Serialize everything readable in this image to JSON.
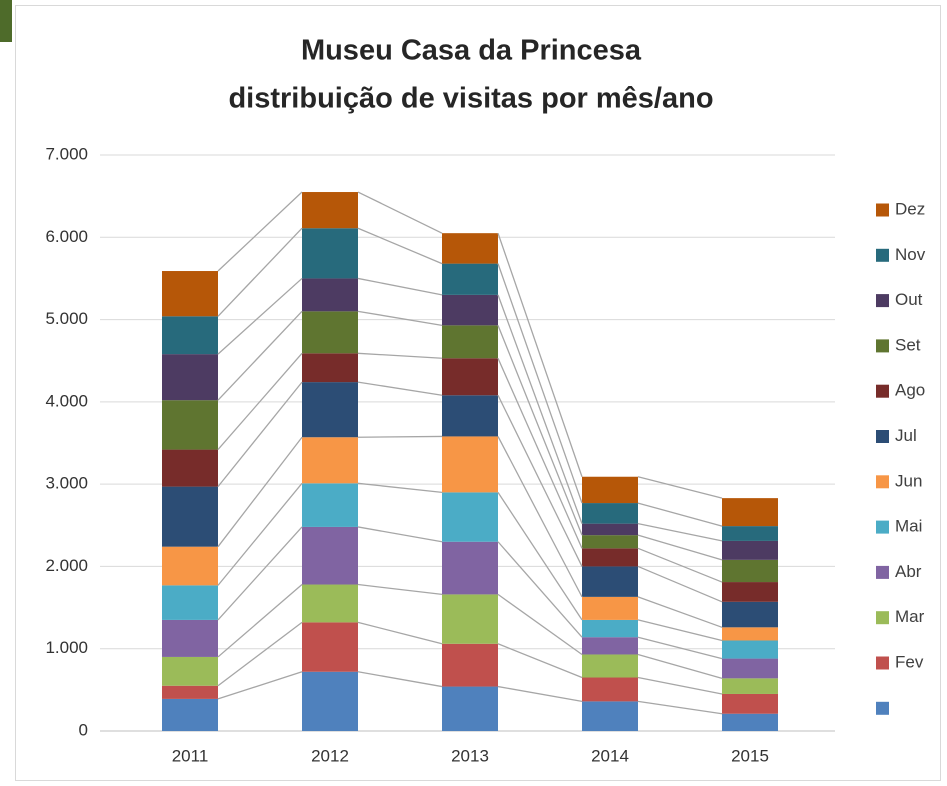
{
  "chart_data": {
    "type": "bar",
    "stacked": true,
    "title": [
      "Museu Casa da Princesa",
      "distribuição de visitas por mês/ano"
    ],
    "categories": [
      "2011",
      "2012",
      "2013",
      "2014",
      "2015"
    ],
    "ylim": [
      0,
      7000
    ],
    "yticks": [
      0,
      {
        "value": 1000,
        "label": "1.000"
      },
      {
        "value": 2000,
        "label": "2.000"
      },
      {
        "value": 3000,
        "label": "3.000"
      },
      {
        "value": 4000,
        "label": "4.000"
      },
      {
        "value": 5000,
        "label": "5.000"
      },
      {
        "value": 6000,
        "label": "6.000"
      },
      {
        "value": 7000,
        "label": "7.000"
      }
    ],
    "grid": true,
    "legend": "right",
    "series": [
      {
        "name": null,
        "color": "#4f81bd",
        "values": [
          390,
          720,
          540,
          360,
          210
        ]
      },
      {
        "name": "Fev",
        "color": "#c0504d",
        "values": [
          160,
          600,
          520,
          290,
          240
        ]
      },
      {
        "name": "Mar",
        "color": "#9bbb59",
        "values": [
          350,
          460,
          600,
          280,
          190
        ]
      },
      {
        "name": "Abr",
        "color": "#8064a2",
        "values": [
          450,
          700,
          640,
          210,
          240
        ]
      },
      {
        "name": "Mai",
        "color": "#4bacc6",
        "values": [
          420,
          530,
          600,
          210,
          220
        ]
      },
      {
        "name": "Jun",
        "color": "#f79646",
        "values": [
          470,
          560,
          680,
          280,
          160
        ]
      },
      {
        "name": "Jul",
        "color": "#2c4d75",
        "values": [
          730,
          670,
          500,
          370,
          310
        ]
      },
      {
        "name": "Ago",
        "color": "#772c2a",
        "values": [
          450,
          350,
          450,
          220,
          240
        ]
      },
      {
        "name": "Set",
        "color": "#5f7530",
        "values": [
          600,
          510,
          400,
          160,
          270
        ]
      },
      {
        "name": "Out",
        "color": "#4d3b62",
        "values": [
          560,
          400,
          370,
          140,
          230
        ]
      },
      {
        "name": "Nov",
        "color": "#276a7c",
        "values": [
          460,
          610,
          380,
          250,
          180
        ]
      },
      {
        "name": "Dez",
        "color": "#b65708",
        "values": [
          550,
          440,
          370,
          320,
          340
        ]
      }
    ]
  }
}
